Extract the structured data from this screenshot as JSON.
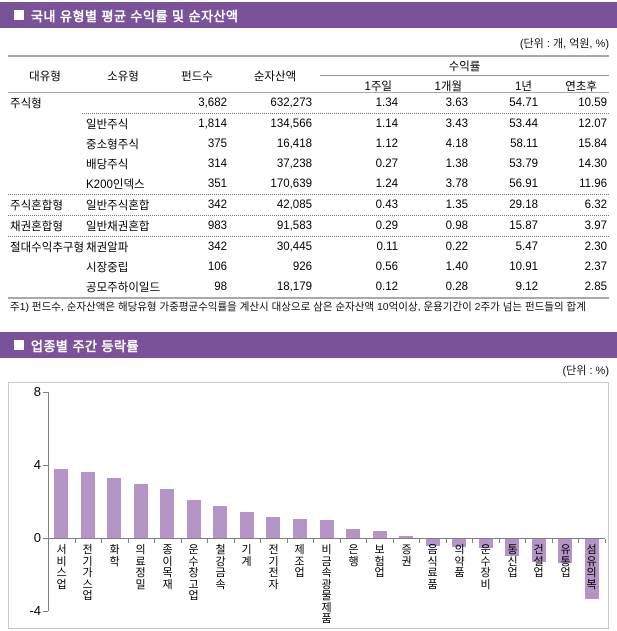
{
  "section1": {
    "title": "국내 유형별 평균 수익률 및 순자산액",
    "unit": "(단위 : 개, 억원, %)",
    "table": {
      "headers": {
        "major": "대유형",
        "minor": "소유형",
        "fund_count": "펀드수",
        "net_assets": "순자산액",
        "returns_group": "수익률",
        "sub": [
          "1주일",
          "1개월",
          "1년",
          "연초후"
        ]
      },
      "rows": [
        {
          "major": "주식형",
          "minor": "",
          "fund_count": "3,682",
          "net_assets": "632,273",
          "w1": "1.34",
          "m1": "3.63",
          "y1": "54.71",
          "ytd": "10.59",
          "sep": "dotted-indent"
        },
        {
          "major": "",
          "minor": "일반주식",
          "fund_count": "1,814",
          "net_assets": "134,566",
          "w1": "1.14",
          "m1": "3.43",
          "y1": "53.44",
          "ytd": "12.07",
          "sep": "none"
        },
        {
          "major": "",
          "minor": "중소형주식",
          "fund_count": "375",
          "net_assets": "16,418",
          "w1": "1.12",
          "m1": "4.18",
          "y1": "58.11",
          "ytd": "15.84",
          "sep": "none"
        },
        {
          "major": "",
          "minor": "배당주식",
          "fund_count": "314",
          "net_assets": "37,238",
          "w1": "0.27",
          "m1": "1.38",
          "y1": "53.79",
          "ytd": "14.30",
          "sep": "none"
        },
        {
          "major": "",
          "minor": "K200인덱스",
          "fund_count": "351",
          "net_assets": "170,639",
          "w1": "1.24",
          "m1": "3.78",
          "y1": "56.91",
          "ytd": "11.96",
          "sep": "dotted"
        },
        {
          "major": "주식혼합형",
          "minor": "일반주식혼합",
          "fund_count": "342",
          "net_assets": "42,085",
          "w1": "0.43",
          "m1": "1.35",
          "y1": "29.18",
          "ytd": "6.32",
          "sep": "dotted"
        },
        {
          "major": "채권혼합형",
          "minor": "일반채권혼합",
          "fund_count": "983",
          "net_assets": "91,583",
          "w1": "0.29",
          "m1": "0.98",
          "y1": "15.87",
          "ytd": "3.97",
          "sep": "dotted"
        },
        {
          "major": "절대수익추구형",
          "minor": "채권알파",
          "fund_count": "342",
          "net_assets": "30,445",
          "w1": "0.11",
          "m1": "0.22",
          "y1": "5.47",
          "ytd": "2.30",
          "sep": "none"
        },
        {
          "major": "",
          "minor": "시장중립",
          "fund_count": "106",
          "net_assets": "926",
          "w1": "0.56",
          "m1": "1.40",
          "y1": "10.91",
          "ytd": "2.37",
          "sep": "none"
        },
        {
          "major": "",
          "minor": "공모주하이일드",
          "fund_count": "98",
          "net_assets": "18,179",
          "w1": "0.12",
          "m1": "0.28",
          "y1": "9.12",
          "ytd": "2.85",
          "sep": "solid"
        }
      ]
    },
    "footnote": "주1) 펀드수, 순자산액은 해당유형 가중평균수익률을 계산시 대상으로 삼은 순자산액 10억이상, 운용기간이 2주가 넘는 펀드들의 합계"
  },
  "section2": {
    "title": "업종별 주간 등락률",
    "unit": "(단위 : %)"
  },
  "chart_data": {
    "type": "bar",
    "title": "업종별 주간 등락률",
    "unit": "%",
    "categories": [
      "서비스업",
      "전기가스업",
      "화학",
      "의료정밀",
      "종이목재",
      "운수창고업",
      "철강금속",
      "기계",
      "전기전자",
      "제조업",
      "비금속광물제품",
      "은행",
      "보험업",
      "증권",
      "음식료품",
      "의약품",
      "운수장비",
      "통신업",
      "건설업",
      "유통업",
      "섬유의복"
    ],
    "values": [
      3.79,
      3.59,
      3.3,
      2.95,
      2.69,
      2.09,
      1.77,
      1.42,
      1.13,
      1.05,
      0.97,
      0.51,
      0.37,
      0.13,
      -0.4,
      -0.45,
      -0.49,
      -0.91,
      -1.25,
      -1.31,
      -3.3
    ],
    "ylim": [
      -4,
      8
    ],
    "yticks": [
      8,
      4,
      0,
      -4
    ],
    "grid": false,
    "legend": "none",
    "bar_color": "#b495c6"
  },
  "colors": {
    "accent": "#7a5299",
    "bar": "#b495c6"
  }
}
